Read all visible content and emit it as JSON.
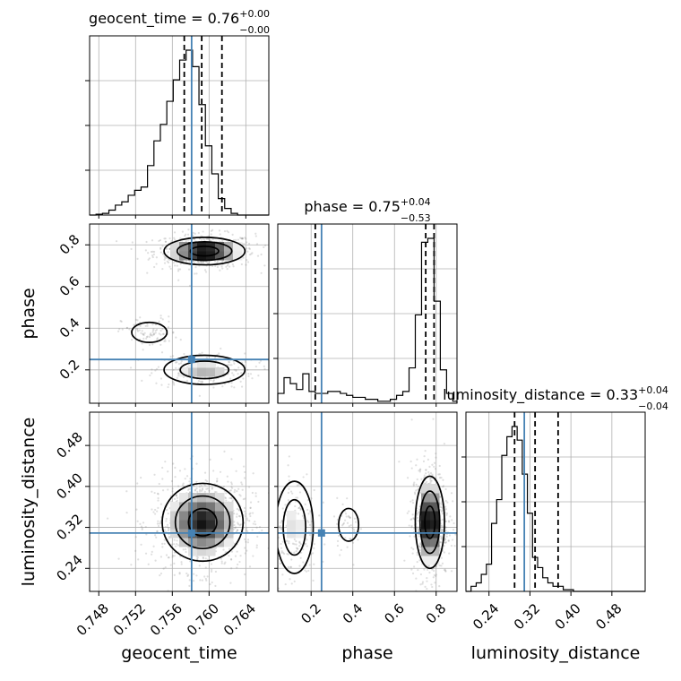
{
  "chart_data": {
    "type": "corner",
    "parameters": [
      {
        "key": "geocent_time",
        "label": "geocent_time",
        "range": [
          0.747,
          0.7665
        ],
        "ticks": [
          0.748,
          0.752,
          0.756,
          0.76,
          0.764
        ],
        "tick_labels": [
          "0.748",
          "0.752",
          "0.756",
          "0.760",
          "0.764"
        ],
        "truth": 0.7581,
        "quantiles": [
          0.7573,
          0.7592,
          0.7614
        ],
        "title": {
          "name": "geocent_time",
          "median": "0.76",
          "plus": "+0.00",
          "minus": "−0.00"
        },
        "histogram": {
          "edges_start": 0.747,
          "bin_width": 0.0007,
          "counts": [
            0,
            0.005,
            0.01,
            0.03,
            0.06,
            0.08,
            0.12,
            0.15,
            0.17,
            0.3,
            0.45,
            0.55,
            0.69,
            0.82,
            0.94,
            1.0,
            0.9,
            0.67,
            0.42,
            0.25,
            0.1,
            0.04,
            0.01,
            0,
            0,
            0,
            0,
            0
          ]
        }
      },
      {
        "key": "phase",
        "label": "phase",
        "range": [
          0.04,
          0.9
        ],
        "ticks": [
          0.2,
          0.4,
          0.6,
          0.8
        ],
        "tick_labels": [
          "0.2",
          "0.4",
          "0.6",
          "0.8"
        ],
        "truth": 0.25,
        "quantiles": [
          0.22,
          0.75,
          0.79
        ],
        "title": {
          "name": "phase",
          "median": "0.75",
          "plus": "+0.04",
          "minus": "−0.53"
        },
        "histogram": {
          "edges_start": 0.04,
          "bin_width": 0.03,
          "counts": [
            0.05,
            0.13,
            0.1,
            0.07,
            0.15,
            0.06,
            0.05,
            0.05,
            0.06,
            0.06,
            0.05,
            0.04,
            0.03,
            0.03,
            0.02,
            0.02,
            0.01,
            0.01,
            0.02,
            0.04,
            0.06,
            0.18,
            0.45,
            0.82,
            0.84,
            0.52,
            0.17,
            0.05,
            0.01
          ]
        }
      },
      {
        "key": "luminosity_distance",
        "label": "luminosity_distance",
        "range": [
          0.195,
          0.545
        ],
        "ticks": [
          0.24,
          0.32,
          0.4,
          0.48
        ],
        "tick_labels": [
          "0.24",
          "0.32",
          "0.40",
          "0.48"
        ],
        "truth": 0.309,
        "quantiles": [
          0.29,
          0.33,
          0.375
        ],
        "title": {
          "name": "luminosity_distance",
          "median": "0.33",
          "plus": "+0.04",
          "minus": "−0.04"
        },
        "histogram": {
          "edges_start": 0.195,
          "bin_width": 0.01,
          "counts": [
            0,
            0.03,
            0.05,
            0.1,
            0.16,
            0.4,
            0.54,
            0.8,
            0.91,
            0.97,
            0.89,
            0.69,
            0.46,
            0.2,
            0.14,
            0.08,
            0.05,
            0.03,
            0.03,
            0.01,
            0.01,
            0.0,
            0.0,
            0.0,
            0.0,
            0.0,
            0.0,
            0.0,
            0.0,
            0.0,
            0.0,
            0.0,
            0.0,
            0.0,
            0.0
          ]
        }
      }
    ],
    "pairs": [
      {
        "x": "geocent_time",
        "y": "phase",
        "modes": [
          {
            "center": [
              0.7595,
              0.77
            ],
            "sigma": [
              0.0022,
              0.033
            ],
            "weight": 0.65
          },
          {
            "center": [
              0.7595,
              0.2
            ],
            "sigma": [
              0.0022,
              0.035
            ],
            "weight": 0.25
          },
          {
            "center": [
              0.7535,
              0.38
            ],
            "sigma": [
              0.0012,
              0.03
            ],
            "weight": 0.1
          }
        ]
      },
      {
        "x": "geocent_time",
        "y": "luminosity_distance",
        "modes": [
          {
            "center": [
              0.7593,
              0.33
            ],
            "sigma": [
              0.0022,
              0.038
            ],
            "weight": 1.0
          }
        ]
      },
      {
        "x": "phase",
        "y": "luminosity_distance",
        "modes": [
          {
            "center": [
              0.77,
              0.33
            ],
            "sigma": [
              0.035,
              0.045
            ],
            "weight": 0.75
          },
          {
            "center": [
              0.12,
              0.32
            ],
            "sigma": [
              0.045,
              0.045
            ],
            "weight": 0.2
          },
          {
            "center": [
              0.38,
              0.325
            ],
            "sigma": [
              0.03,
              0.02
            ],
            "weight": 0.05
          }
        ]
      }
    ],
    "grid": true,
    "truth_color": "#4682b4",
    "line_color": "#000000",
    "grid_color": "#b0b0b0",
    "scatter_color": "#808080"
  }
}
